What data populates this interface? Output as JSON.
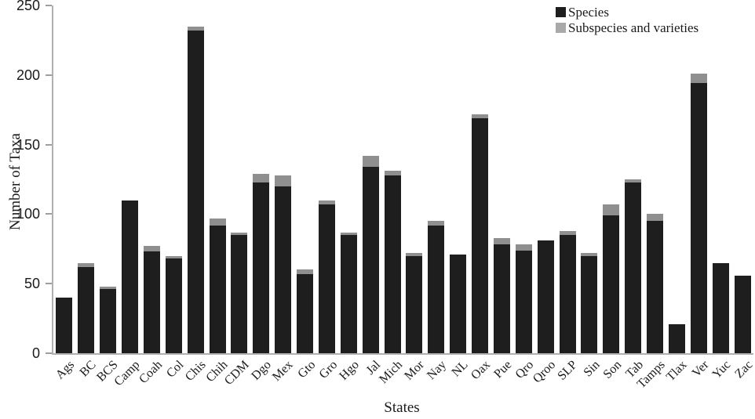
{
  "chart_data": {
    "type": "bar",
    "stacked": true,
    "xlabel": "States",
    "ylabel": "Number of Taxa",
    "ylim": [
      0,
      250
    ],
    "yticks": [
      0,
      50,
      100,
      150,
      200,
      250
    ],
    "grid": false,
    "legend_position": "top-right-inside",
    "categories": [
      "Ags",
      "BC",
      "BCS",
      "Camp",
      "Coah",
      "Col",
      "Chis",
      "Chih",
      "CDM",
      "Dgo",
      "Mex",
      "Gto",
      "Gro",
      "Hgo",
      "Jal",
      "Mich",
      "Mor",
      "Nay",
      "NL",
      "Oax",
      "Pue",
      "Qro",
      "Qroo",
      "SLP",
      "Sin",
      "Son",
      "Tab",
      "Tamps",
      "Tlax",
      "Ver",
      "Yuc",
      "Zac"
    ],
    "series": [
      {
        "name": "Species",
        "color": "#1e1e1e",
        "legend_color": "#1e1e1e",
        "values": [
          40,
          62,
          46,
          110,
          73,
          68,
          232,
          92,
          85,
          123,
          120,
          57,
          107,
          85,
          134,
          128,
          70,
          92,
          71,
          169,
          78,
          74,
          81,
          85,
          70,
          99,
          123,
          95,
          21,
          194,
          65,
          56
        ]
      },
      {
        "name": "Subspecies and varieties",
        "color": "#8f8f8f",
        "legend_color": "#a9a9a9",
        "values": [
          0,
          3,
          2,
          0,
          4,
          2,
          3,
          5,
          2,
          6,
          8,
          3,
          3,
          2,
          8,
          3,
          2,
          3,
          0,
          3,
          5,
          4,
          0,
          3,
          2,
          8,
          2,
          5,
          0,
          7,
          0,
          0
        ]
      }
    ],
    "colors": {
      "axis_line": "#b0b0b0",
      "tick_mark": "#9e9e9e",
      "text": "#1a1a1a",
      "background": "#ffffff"
    }
  }
}
